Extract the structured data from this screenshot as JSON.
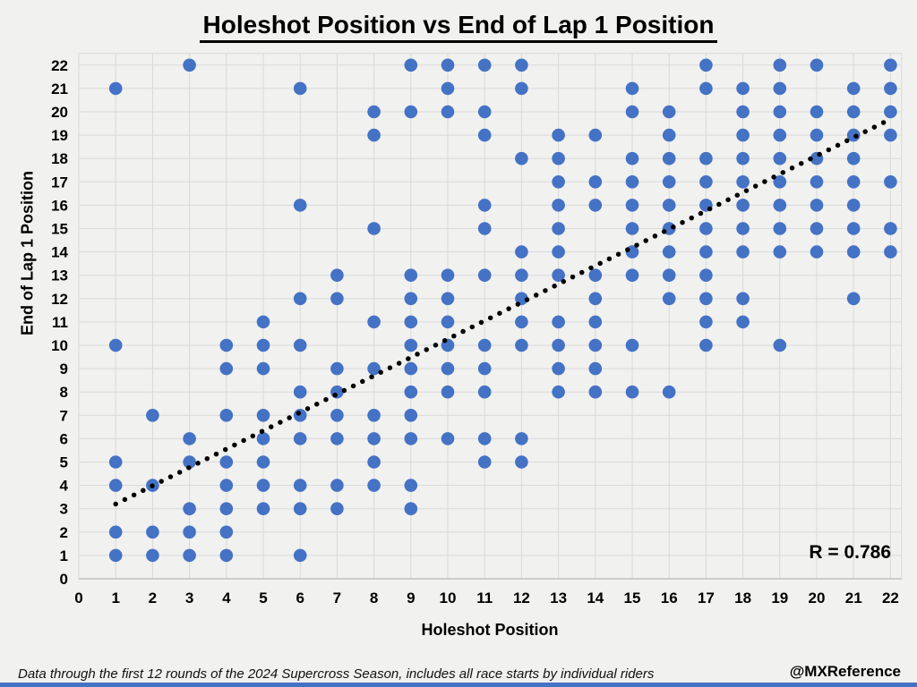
{
  "title": "Holeshot Position vs End of Lap 1 Position",
  "chart_data": {
    "type": "scatter",
    "title": "Holeshot Position vs End of Lap 1 Position",
    "xlabel": "Holeshot Position",
    "ylabel": "End of Lap 1 Position",
    "xlim": [
      0,
      22.3
    ],
    "ylim": [
      0,
      22.5
    ],
    "x_ticks": [
      0,
      1,
      2,
      3,
      4,
      5,
      6,
      7,
      8,
      9,
      10,
      11,
      12,
      13,
      14,
      15,
      16,
      17,
      18,
      19,
      20,
      21,
      22
    ],
    "y_ticks": [
      0,
      1,
      2,
      3,
      4,
      5,
      6,
      7,
      8,
      9,
      10,
      11,
      12,
      13,
      14,
      15,
      16,
      17,
      18,
      19,
      20,
      21,
      22
    ],
    "grid": true,
    "legend": "none",
    "annotation": "R = 0.786",
    "marker_color": "#4472c4",
    "points": [
      [
        3,
        22
      ],
      [
        9,
        22
      ],
      [
        10,
        22
      ],
      [
        11,
        22
      ],
      [
        12,
        22
      ],
      [
        17,
        22
      ],
      [
        19,
        22
      ],
      [
        20,
        22
      ],
      [
        22,
        22
      ],
      [
        1,
        21
      ],
      [
        6,
        21
      ],
      [
        10,
        21
      ],
      [
        12,
        21
      ],
      [
        15,
        21
      ],
      [
        17,
        21
      ],
      [
        18,
        21
      ],
      [
        19,
        21
      ],
      [
        21,
        21
      ],
      [
        22,
        21
      ],
      [
        8,
        20
      ],
      [
        9,
        20
      ],
      [
        10,
        20
      ],
      [
        11,
        20
      ],
      [
        15,
        20
      ],
      [
        16,
        20
      ],
      [
        18,
        20
      ],
      [
        19,
        20
      ],
      [
        20,
        20
      ],
      [
        21,
        20
      ],
      [
        22,
        20
      ],
      [
        8,
        19
      ],
      [
        11,
        19
      ],
      [
        13,
        19
      ],
      [
        14,
        19
      ],
      [
        16,
        19
      ],
      [
        18,
        19
      ],
      [
        19,
        19
      ],
      [
        20,
        19
      ],
      [
        21,
        19
      ],
      [
        22,
        19
      ],
      [
        12,
        18
      ],
      [
        13,
        18
      ],
      [
        15,
        18
      ],
      [
        16,
        18
      ],
      [
        17,
        18
      ],
      [
        18,
        18
      ],
      [
        19,
        18
      ],
      [
        20,
        18
      ],
      [
        21,
        18
      ],
      [
        13,
        17
      ],
      [
        14,
        17
      ],
      [
        15,
        17
      ],
      [
        16,
        17
      ],
      [
        17,
        17
      ],
      [
        18,
        17
      ],
      [
        19,
        17
      ],
      [
        20,
        17
      ],
      [
        21,
        17
      ],
      [
        22,
        17
      ],
      [
        6,
        16
      ],
      [
        11,
        16
      ],
      [
        13,
        16
      ],
      [
        14,
        16
      ],
      [
        15,
        16
      ],
      [
        16,
        16
      ],
      [
        17,
        16
      ],
      [
        18,
        16
      ],
      [
        19,
        16
      ],
      [
        20,
        16
      ],
      [
        21,
        16
      ],
      [
        8,
        15
      ],
      [
        11,
        15
      ],
      [
        13,
        15
      ],
      [
        15,
        15
      ],
      [
        16,
        15
      ],
      [
        17,
        15
      ],
      [
        18,
        15
      ],
      [
        19,
        15
      ],
      [
        20,
        15
      ],
      [
        21,
        15
      ],
      [
        22,
        15
      ],
      [
        12,
        14
      ],
      [
        13,
        14
      ],
      [
        15,
        14
      ],
      [
        16,
        14
      ],
      [
        17,
        14
      ],
      [
        18,
        14
      ],
      [
        19,
        14
      ],
      [
        20,
        14
      ],
      [
        21,
        14
      ],
      [
        22,
        14
      ],
      [
        7,
        13
      ],
      [
        9,
        13
      ],
      [
        10,
        13
      ],
      [
        11,
        13
      ],
      [
        12,
        13
      ],
      [
        13,
        13
      ],
      [
        14,
        13
      ],
      [
        15,
        13
      ],
      [
        16,
        13
      ],
      [
        17,
        13
      ],
      [
        6,
        12
      ],
      [
        7,
        12
      ],
      [
        9,
        12
      ],
      [
        10,
        12
      ],
      [
        12,
        12
      ],
      [
        14,
        12
      ],
      [
        16,
        12
      ],
      [
        17,
        12
      ],
      [
        18,
        12
      ],
      [
        21,
        12
      ],
      [
        5,
        11
      ],
      [
        8,
        11
      ],
      [
        9,
        11
      ],
      [
        10,
        11
      ],
      [
        12,
        11
      ],
      [
        13,
        11
      ],
      [
        14,
        11
      ],
      [
        17,
        11
      ],
      [
        18,
        11
      ],
      [
        1,
        10
      ],
      [
        4,
        10
      ],
      [
        5,
        10
      ],
      [
        6,
        10
      ],
      [
        9,
        10
      ],
      [
        10,
        10
      ],
      [
        11,
        10
      ],
      [
        12,
        10
      ],
      [
        13,
        10
      ],
      [
        14,
        10
      ],
      [
        15,
        10
      ],
      [
        17,
        10
      ],
      [
        19,
        10
      ],
      [
        4,
        9
      ],
      [
        5,
        9
      ],
      [
        7,
        9
      ],
      [
        8,
        9
      ],
      [
        9,
        9
      ],
      [
        10,
        9
      ],
      [
        11,
        9
      ],
      [
        13,
        9
      ],
      [
        14,
        9
      ],
      [
        6,
        8
      ],
      [
        7,
        8
      ],
      [
        9,
        8
      ],
      [
        10,
        8
      ],
      [
        11,
        8
      ],
      [
        13,
        8
      ],
      [
        14,
        8
      ],
      [
        15,
        8
      ],
      [
        16,
        8
      ],
      [
        2,
        7
      ],
      [
        4,
        7
      ],
      [
        5,
        7
      ],
      [
        6,
        7
      ],
      [
        7,
        7
      ],
      [
        8,
        7
      ],
      [
        9,
        7
      ],
      [
        3,
        6
      ],
      [
        5,
        6
      ],
      [
        6,
        6
      ],
      [
        7,
        6
      ],
      [
        8,
        6
      ],
      [
        9,
        6
      ],
      [
        10,
        6
      ],
      [
        11,
        6
      ],
      [
        12,
        6
      ],
      [
        1,
        5
      ],
      [
        3,
        5
      ],
      [
        4,
        5
      ],
      [
        5,
        5
      ],
      [
        8,
        5
      ],
      [
        11,
        5
      ],
      [
        12,
        5
      ],
      [
        1,
        4
      ],
      [
        2,
        4
      ],
      [
        4,
        4
      ],
      [
        5,
        4
      ],
      [
        6,
        4
      ],
      [
        7,
        4
      ],
      [
        8,
        4
      ],
      [
        9,
        4
      ],
      [
        3,
        3
      ],
      [
        4,
        3
      ],
      [
        5,
        3
      ],
      [
        6,
        3
      ],
      [
        7,
        3
      ],
      [
        9,
        3
      ],
      [
        1,
        2
      ],
      [
        2,
        2
      ],
      [
        3,
        2
      ],
      [
        4,
        2
      ],
      [
        1,
        1
      ],
      [
        2,
        1
      ],
      [
        3,
        1
      ],
      [
        4,
        1
      ],
      [
        6,
        1
      ]
    ],
    "trendline": {
      "style": "dotted",
      "color": "#000000",
      "x1": 1.0,
      "y1": 3.2,
      "x2": 21.95,
      "y2": 19.65
    }
  },
  "footer": {
    "note": "Data through the first 12 rounds of the 2024 Supercross Season, includes all race starts by individual riders",
    "credit": "@MXReference"
  },
  "colors": {
    "background": "#f1f1f0",
    "plot_background": "#f1f1f0",
    "gridline": "#d9d9d9",
    "axis_line": "#bfbfbf",
    "marker": "#4472c4",
    "trend": "#000000",
    "text": "#000000",
    "bottom_bar": "#4472c4"
  }
}
